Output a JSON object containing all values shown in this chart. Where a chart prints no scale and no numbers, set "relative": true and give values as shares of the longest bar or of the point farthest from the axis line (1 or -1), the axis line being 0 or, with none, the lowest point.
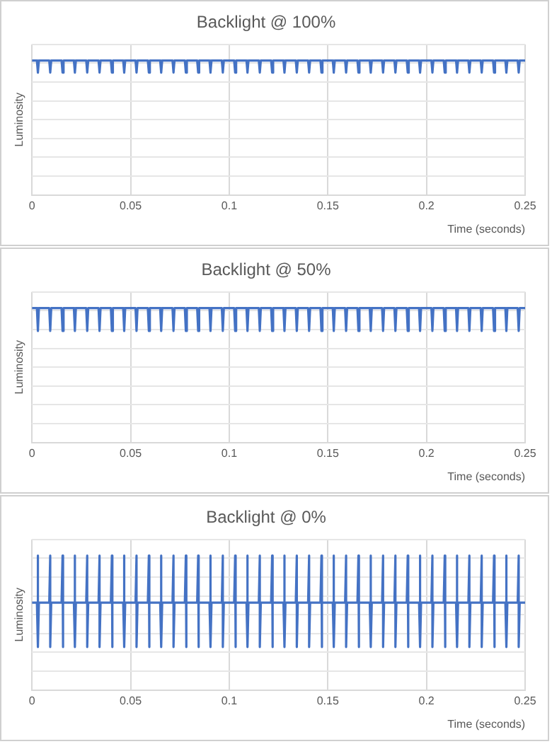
{
  "chart_data": [
    {
      "type": "line",
      "title": "Backlight @ 100%",
      "xlabel": "Time (seconds)",
      "ylabel": "Luminosity",
      "relative": true,
      "grid": true,
      "legend": false,
      "marker": "none",
      "line_style": "solid",
      "xlim": [
        0,
        0.25
      ],
      "xticks": [
        0,
        0.05,
        0.1,
        0.15,
        0.2,
        0.25
      ],
      "x": [
        0,
        0.0025,
        0.003,
        0.0035,
        0.00875,
        0.00925,
        0.00975,
        0.015,
        0.0155,
        0.016,
        0.02125,
        0.02175,
        0.02225,
        0.0275,
        0.028,
        0.0285,
        0.03375,
        0.03425,
        0.03475,
        0.04,
        0.0405,
        0.041,
        0.04625,
        0.04675,
        0.04725,
        0.0525,
        0.053,
        0.0535,
        0.05875,
        0.05925,
        0.05975,
        0.065,
        0.0655,
        0.066,
        0.07125,
        0.07175,
        0.07225,
        0.0775,
        0.078,
        0.0785,
        0.08375,
        0.08425,
        0.08475,
        0.09,
        0.0905,
        0.091,
        0.09625,
        0.09675,
        0.09725,
        0.1025,
        0.103,
        0.1035,
        0.10875,
        0.10925,
        0.10975,
        0.115,
        0.1155,
        0.116,
        0.12125,
        0.12175,
        0.12225,
        0.1275,
        0.128,
        0.1285,
        0.13375,
        0.13425,
        0.13475,
        0.14,
        0.1405,
        0.141,
        0.14625,
        0.14675,
        0.14725,
        0.1525,
        0.153,
        0.1535,
        0.15875,
        0.15925,
        0.15975,
        0.165,
        0.1655,
        0.166,
        0.17125,
        0.17175,
        0.17225,
        0.1775,
        0.178,
        0.1785,
        0.18375,
        0.18425,
        0.18475,
        0.19,
        0.1905,
        0.191,
        0.19625,
        0.19675,
        0.19725,
        0.2025,
        0.203,
        0.2035,
        0.20875,
        0.20925,
        0.20975,
        0.215,
        0.2155,
        0.216,
        0.22125,
        0.22175,
        0.22225,
        0.2275,
        0.228,
        0.2285,
        0.23375,
        0.23425,
        0.23475,
        0.24,
        0.2405,
        0.241,
        0.24625,
        0.24675,
        0.24725,
        0.25
      ],
      "series": [
        {
          "color": "#4472c4",
          "values": [
            1,
            1,
            0.91,
            1,
            1,
            0.91,
            1,
            1,
            0.91,
            1,
            1,
            0.91,
            1,
            1,
            0.91,
            1,
            1,
            0.91,
            1,
            1,
            0.91,
            1,
            1,
            0.91,
            1,
            1,
            0.91,
            1,
            1,
            0.91,
            1,
            1,
            0.91,
            1,
            1,
            0.91,
            1,
            1,
            0.91,
            1,
            1,
            0.91,
            1,
            1,
            0.91,
            1,
            1,
            0.91,
            1,
            1,
            0.91,
            1,
            1,
            0.91,
            1,
            1,
            0.91,
            1,
            1,
            0.91,
            1,
            1,
            0.91,
            1,
            1,
            0.91,
            1,
            1,
            0.91,
            1,
            1,
            0.91,
            1,
            1,
            0.91,
            1,
            1,
            0.91,
            1,
            1,
            0.91,
            1,
            1,
            0.91,
            1,
            1,
            0.91,
            1,
            1,
            0.91,
            1,
            1,
            0.91,
            1,
            1,
            0.91,
            1,
            1,
            0.91,
            1,
            1,
            0.91,
            1,
            1,
            0.91,
            1,
            1,
            0.91,
            1,
            1,
            0.91,
            1,
            1,
            0.91,
            1,
            1,
            0.91,
            1,
            1,
            0.91,
            1,
            1
          ]
        }
      ]
    },
    {
      "type": "line",
      "title": "Backlight @ 50%",
      "xlabel": "Time (seconds)",
      "ylabel": "Luminosity",
      "relative": true,
      "grid": true,
      "legend": false,
      "marker": "none",
      "line_style": "solid",
      "xlim": [
        0,
        0.25
      ],
      "xticks": [
        0,
        0.05,
        0.1,
        0.15,
        0.2,
        0.25
      ],
      "x": [
        0,
        0.0025,
        0.003,
        0.0035,
        0.00875,
        0.00925,
        0.00975,
        0.015,
        0.0155,
        0.016,
        0.02125,
        0.02175,
        0.02225,
        0.0275,
        0.028,
        0.0285,
        0.03375,
        0.03425,
        0.03475,
        0.04,
        0.0405,
        0.041,
        0.04625,
        0.04675,
        0.04725,
        0.0525,
        0.053,
        0.0535,
        0.05875,
        0.05925,
        0.05975,
        0.065,
        0.0655,
        0.066,
        0.07125,
        0.07175,
        0.07225,
        0.0775,
        0.078,
        0.0785,
        0.08375,
        0.08425,
        0.08475,
        0.09,
        0.0905,
        0.091,
        0.09625,
        0.09675,
        0.09725,
        0.1025,
        0.103,
        0.1035,
        0.10875,
        0.10925,
        0.10975,
        0.115,
        0.1155,
        0.116,
        0.12125,
        0.12175,
        0.12225,
        0.1275,
        0.128,
        0.1285,
        0.13375,
        0.13425,
        0.13475,
        0.14,
        0.1405,
        0.141,
        0.14625,
        0.14675,
        0.14725,
        0.1525,
        0.153,
        0.1535,
        0.15875,
        0.15925,
        0.15975,
        0.165,
        0.1655,
        0.166,
        0.17125,
        0.17175,
        0.17225,
        0.1775,
        0.178,
        0.1785,
        0.18375,
        0.18425,
        0.18475,
        0.19,
        0.1905,
        0.191,
        0.19625,
        0.19675,
        0.19725,
        0.2025,
        0.203,
        0.2035,
        0.20875,
        0.20925,
        0.20975,
        0.215,
        0.2155,
        0.216,
        0.22125,
        0.22175,
        0.22225,
        0.2275,
        0.228,
        0.2285,
        0.23375,
        0.23425,
        0.23475,
        0.24,
        0.2405,
        0.241,
        0.24625,
        0.24675,
        0.24725,
        0.25
      ],
      "series": [
        {
          "color": "#4472c4",
          "values": [
            1,
            1,
            0.83,
            1,
            1,
            0.83,
            1,
            1,
            0.83,
            1,
            1,
            0.83,
            1,
            1,
            0.83,
            1,
            1,
            0.83,
            1,
            1,
            0.83,
            1,
            1,
            0.83,
            1,
            1,
            0.83,
            1,
            1,
            0.83,
            1,
            1,
            0.83,
            1,
            1,
            0.83,
            1,
            1,
            0.83,
            1,
            1,
            0.83,
            1,
            1,
            0.83,
            1,
            1,
            0.83,
            1,
            1,
            0.83,
            1,
            1,
            0.83,
            1,
            1,
            0.83,
            1,
            1,
            0.83,
            1,
            1,
            0.83,
            1,
            1,
            0.83,
            1,
            1,
            0.83,
            1,
            1,
            0.83,
            1,
            1,
            0.83,
            1,
            1,
            0.83,
            1,
            1,
            0.83,
            1,
            1,
            0.83,
            1,
            1,
            0.83,
            1,
            1,
            0.83,
            1,
            1,
            0.83,
            1,
            1,
            0.83,
            1,
            1,
            0.83,
            1,
            1,
            0.83,
            1,
            1,
            0.83,
            1,
            1,
            0.83,
            1,
            1,
            0.83,
            1,
            1,
            0.83,
            1,
            1,
            0.83,
            1,
            1,
            0.83,
            1,
            1
          ]
        }
      ]
    },
    {
      "type": "line",
      "title": "Backlight @ 0%",
      "xlabel": "Time (seconds)",
      "ylabel": "Luminosity",
      "relative": true,
      "grid": true,
      "legend": false,
      "marker": "none",
      "line_style": "solid",
      "xlim": [
        0,
        0.25
      ],
      "xticks": [
        0,
        0.05,
        0.1,
        0.15,
        0.2,
        0.25
      ],
      "series": [
        {
          "color": "#4472c4",
          "x": [
            0,
            0.0025,
            0.003,
            0.003,
            0.0035,
            0.00875,
            0.00925,
            0.00925,
            0.00975,
            0.015,
            0.0155,
            0.0155,
            0.016,
            0.02125,
            0.02175,
            0.02175,
            0.02225,
            0.0275,
            0.028,
            0.028,
            0.0285,
            0.03375,
            0.03425,
            0.03425,
            0.03475,
            0.04,
            0.0405,
            0.0405,
            0.041,
            0.04625,
            0.04675,
            0.04675,
            0.04725,
            0.0525,
            0.053,
            0.053,
            0.0535,
            0.05875,
            0.05925,
            0.05925,
            0.05975,
            0.065,
            0.0655,
            0.0655,
            0.066,
            0.07125,
            0.07175,
            0.07175,
            0.07225,
            0.0775,
            0.078,
            0.078,
            0.0785,
            0.08375,
            0.08425,
            0.08425,
            0.08475,
            0.09,
            0.0905,
            0.0905,
            0.091,
            0.09625,
            0.09675,
            0.09675,
            0.09725,
            0.1025,
            0.103,
            0.103,
            0.1035,
            0.10875,
            0.10925,
            0.10925,
            0.10975,
            0.115,
            0.1155,
            0.1155,
            0.116,
            0.12125,
            0.12175,
            0.12175,
            0.12225,
            0.1275,
            0.128,
            0.128,
            0.1285,
            0.13375,
            0.13425,
            0.13425,
            0.13475,
            0.14,
            0.1405,
            0.1405,
            0.141,
            0.14625,
            0.14675,
            0.14675,
            0.14725,
            0.1525,
            0.153,
            0.153,
            0.1535,
            0.15875,
            0.15925,
            0.15925,
            0.15975,
            0.165,
            0.1655,
            0.1655,
            0.166,
            0.17125,
            0.17175,
            0.17175,
            0.17225,
            0.1775,
            0.178,
            0.178,
            0.1785,
            0.18375,
            0.18425,
            0.18425,
            0.18475,
            0.19,
            0.1905,
            0.1905,
            0.191,
            0.19625,
            0.19675,
            0.19675,
            0.19725,
            0.2025,
            0.203,
            0.203,
            0.2035,
            0.20875,
            0.20925,
            0.20925,
            0.20975,
            0.215,
            0.2155,
            0.2155,
            0.216,
            0.22125,
            0.22175,
            0.22175,
            0.22225,
            0.2275,
            0.228,
            0.228,
            0.2285,
            0.23375,
            0.23425,
            0.23425,
            0.23475,
            0.24,
            0.2405,
            0.2405,
            0.241,
            0.24625,
            0.24675,
            0.24675,
            0.24725,
            0.25
          ],
          "values": [
            0.65,
            0.65,
            1,
            0.32,
            0.65,
            0.65,
            1,
            0.32,
            0.65,
            0.65,
            1,
            0.32,
            0.65,
            0.65,
            1,
            0.32,
            0.65,
            0.65,
            1,
            0.32,
            0.65,
            0.65,
            1,
            0.32,
            0.65,
            0.65,
            1,
            0.32,
            0.65,
            0.65,
            1,
            0.32,
            0.65,
            0.65,
            1,
            0.32,
            0.65,
            0.65,
            1,
            0.32,
            0.65,
            0.65,
            1,
            0.32,
            0.65,
            0.65,
            1,
            0.32,
            0.65,
            0.65,
            1,
            0.32,
            0.65,
            0.65,
            1,
            0.32,
            0.65,
            0.65,
            1,
            0.32,
            0.65,
            0.65,
            1,
            0.32,
            0.65,
            0.65,
            1,
            0.32,
            0.65,
            0.65,
            1,
            0.32,
            0.65,
            0.65,
            1,
            0.32,
            0.65,
            0.65,
            1,
            0.32,
            0.65,
            0.65,
            1,
            0.32,
            0.65,
            0.65,
            1,
            0.32,
            0.65,
            0.65,
            1,
            0.32,
            0.65,
            0.65,
            1,
            0.32,
            0.65,
            0.65,
            1,
            0.32,
            0.65,
            0.65,
            1,
            0.32,
            0.65,
            0.65,
            1,
            0.32,
            0.65,
            0.65,
            1,
            0.32,
            0.65,
            0.65,
            1,
            0.32,
            0.65,
            0.65,
            1,
            0.32,
            0.65,
            0.65,
            1,
            0.32,
            0.65,
            0.65,
            1,
            0.32,
            0.65,
            0.65,
            1,
            0.32,
            0.65,
            0.65,
            1,
            0.32,
            0.65,
            0.65,
            1,
            0.32,
            0.65,
            0.65,
            1,
            0.32,
            0.65,
            0.65,
            1,
            0.32,
            0.65,
            0.65,
            1,
            0.32,
            0.65,
            0.65,
            1,
            0.32,
            0.65,
            0.65,
            1,
            0.32,
            0.65,
            0.65
          ]
        }
      ]
    }
  ]
}
